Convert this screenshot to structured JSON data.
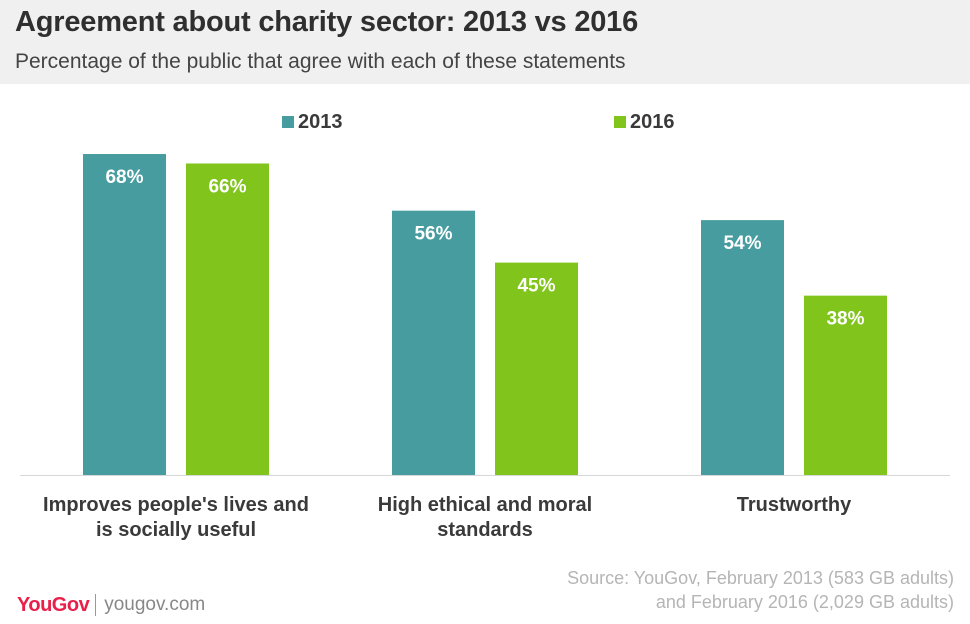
{
  "title": "Agreement about charity sector: 2013 vs 2016",
  "subtitle": "Percentage of the public that agree with each of these statements",
  "source_line1": "Source: YouGov, February 2013 (583 GB adults)",
  "source_line2": "and February 2016 (2,029 GB adults)",
  "brand": {
    "logo": "YouGov",
    "site": "yougov.com"
  },
  "colors": {
    "series_2013": "#469c9f",
    "series_2016": "#80c41c",
    "logo": "#e8204a"
  },
  "chart_data": {
    "type": "bar",
    "categories": [
      [
        "Improves people's lives and",
        "is socially useful"
      ],
      [
        "High ethical and moral",
        "standards"
      ],
      [
        "Trustworthy"
      ]
    ],
    "series": [
      {
        "name": "2013",
        "values": [
          68,
          56,
          54
        ],
        "labels": [
          "68%",
          "56%",
          "54%"
        ]
      },
      {
        "name": "2016",
        "values": [
          66,
          45,
          38
        ],
        "labels": [
          "66%",
          "45%",
          "38%"
        ]
      }
    ],
    "ylim": [
      0,
      70
    ],
    "grid": false,
    "legend": "top-center"
  }
}
